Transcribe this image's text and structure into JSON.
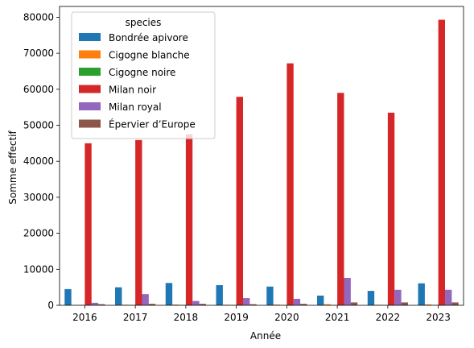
{
  "chart_data": {
    "type": "bar",
    "title": "",
    "xlabel": "Année",
    "ylabel": "Somme effectif",
    "categories": [
      "2016",
      "2017",
      "2018",
      "2019",
      "2020",
      "2021",
      "2022",
      "2023"
    ],
    "ylim": [
      0,
      83000
    ],
    "yticks": [
      0,
      10000,
      20000,
      30000,
      40000,
      50000,
      60000,
      70000,
      80000
    ],
    "grid": false,
    "legend": {
      "title": "species",
      "placement": "top-left"
    },
    "series": [
      {
        "name": "Bondrée apivore",
        "color": "#1f77b4",
        "values": [
          4500,
          5000,
          6200,
          5600,
          5200,
          2700,
          4000,
          6100
        ]
      },
      {
        "name": "Cigogne blanche",
        "color": "#ff7f0e",
        "values": [
          100,
          150,
          200,
          150,
          200,
          300,
          150,
          250
        ]
      },
      {
        "name": "Cigogne noire",
        "color": "#2ca02c",
        "values": [
          100,
          100,
          100,
          100,
          100,
          100,
          100,
          100
        ]
      },
      {
        "name": "Milan noir",
        "color": "#d62728",
        "values": [
          45000,
          45900,
          47500,
          57900,
          67200,
          59000,
          53500,
          79300
        ]
      },
      {
        "name": "Milan royal",
        "color": "#9467bd",
        "values": [
          700,
          3100,
          1200,
          2000,
          1800,
          7600,
          4300,
          4300
        ]
      },
      {
        "name": "Épervier d’Europe",
        "color": "#8c564b",
        "values": [
          300,
          400,
          400,
          300,
          400,
          800,
          800,
          800
        ]
      }
    ]
  }
}
